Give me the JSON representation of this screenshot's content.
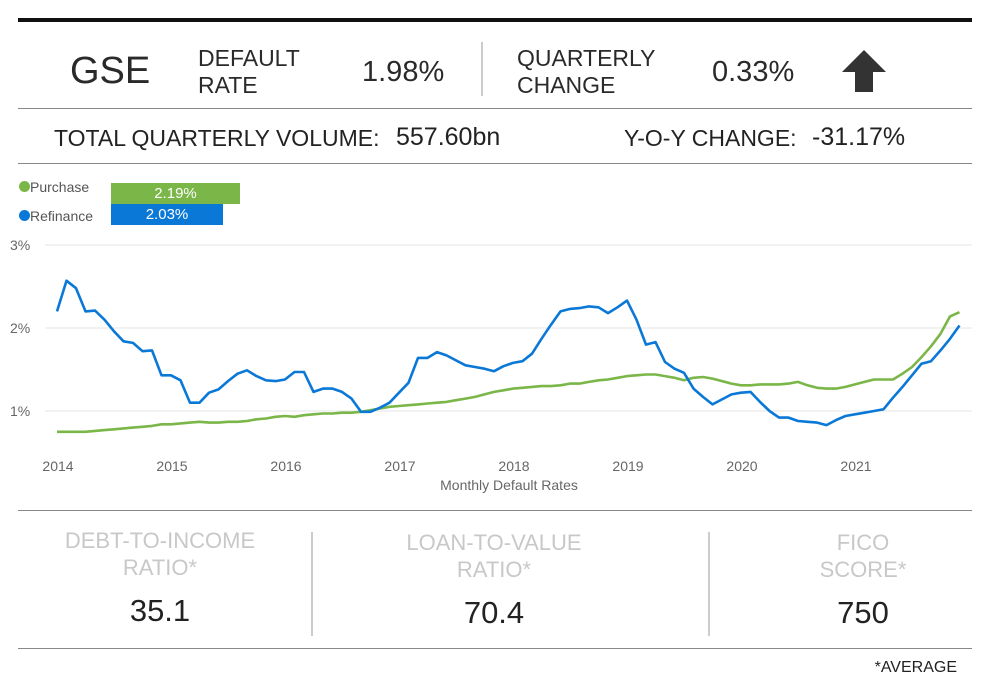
{
  "header": {
    "segment": "GSE",
    "default_rate_label": [
      "DEFAULT",
      "RATE"
    ],
    "default_rate_value": "1.98%",
    "quarterly_change_label": [
      "QUARTERLY",
      "CHANGE"
    ],
    "quarterly_change_value": "0.33%",
    "trend_icon": "arrow-up-icon"
  },
  "volume": {
    "label": "TOTAL QUARTERLY VOLUME:",
    "value": "557.60bn",
    "yoy_label": "Y-O-Y CHANGE:",
    "yoy_value": "-31.17%"
  },
  "legend": [
    {
      "name": "Purchase",
      "value": "2.19%",
      "color": "#7ab648"
    },
    {
      "name": "Refinance",
      "value": "2.03%",
      "color": "#0a78d7"
    }
  ],
  "chart_data": {
    "type": "line",
    "xlabel": "Monthly Default Rates",
    "ylabel": "",
    "x_ticks": [
      "2014",
      "2015",
      "2016",
      "2017",
      "2018",
      "2019",
      "2020",
      "2021"
    ],
    "y_ticks": [
      "3%",
      "2%",
      "1%"
    ],
    "ylim": [
      0.5,
      3
    ],
    "x_range": [
      "2014-01",
      "2021-12"
    ],
    "grid": "horizontal",
    "legend_position": "top-left",
    "series": [
      {
        "name": "Purchase",
        "color": "#7ab648",
        "values": [
          0.75,
          0.75,
          0.75,
          0.75,
          0.76,
          0.77,
          0.78,
          0.79,
          0.8,
          0.81,
          0.82,
          0.84,
          0.84,
          0.85,
          0.86,
          0.87,
          0.86,
          0.86,
          0.87,
          0.87,
          0.88,
          0.9,
          0.91,
          0.93,
          0.94,
          0.93,
          0.95,
          0.96,
          0.97,
          0.97,
          0.98,
          0.98,
          0.99,
          1.01,
          1.03,
          1.05,
          1.06,
          1.07,
          1.08,
          1.09,
          1.1,
          1.11,
          1.13,
          1.15,
          1.17,
          1.2,
          1.23,
          1.25,
          1.27,
          1.28,
          1.29,
          1.3,
          1.3,
          1.31,
          1.33,
          1.33,
          1.35,
          1.37,
          1.38,
          1.4,
          1.42,
          1.43,
          1.44,
          1.44,
          1.42,
          1.4,
          1.37,
          1.4,
          1.41,
          1.39,
          1.36,
          1.33,
          1.31,
          1.31,
          1.32,
          1.32,
          1.32,
          1.33,
          1.35,
          1.31,
          1.28,
          1.27,
          1.27,
          1.29,
          1.32,
          1.35,
          1.38,
          1.38,
          1.38,
          1.45,
          1.53,
          1.65,
          1.78,
          1.93,
          2.14,
          2.19
        ]
      },
      {
        "name": "Refinance",
        "color": "#0a78d7",
        "values": [
          2.2,
          2.57,
          2.48,
          2.2,
          2.21,
          2.1,
          1.96,
          1.84,
          1.82,
          1.72,
          1.73,
          1.43,
          1.43,
          1.37,
          1.1,
          1.1,
          1.22,
          1.26,
          1.36,
          1.45,
          1.49,
          1.42,
          1.37,
          1.36,
          1.38,
          1.47,
          1.47,
          1.23,
          1.27,
          1.27,
          1.23,
          1.15,
          0.99,
          0.99,
          1.04,
          1.1,
          1.22,
          1.34,
          1.64,
          1.64,
          1.71,
          1.67,
          1.61,
          1.55,
          1.53,
          1.51,
          1.48,
          1.54,
          1.58,
          1.6,
          1.69,
          1.87,
          2.04,
          2.2,
          2.23,
          2.24,
          2.26,
          2.25,
          2.18,
          2.25,
          2.33,
          2.1,
          1.8,
          1.83,
          1.59,
          1.51,
          1.46,
          1.27,
          1.17,
          1.08,
          1.14,
          1.2,
          1.22,
          1.23,
          1.11,
          1.0,
          0.92,
          0.92,
          0.88,
          0.87,
          0.86,
          0.83,
          0.89,
          0.94,
          0.96,
          0.98,
          1.0,
          1.02,
          1.16,
          1.29,
          1.43,
          1.57,
          1.6,
          1.73,
          1.87,
          2.03
        ]
      }
    ]
  },
  "stats": [
    {
      "label": [
        "DEBT-TO-INCOME",
        "RATIO*"
      ],
      "value": "35.1"
    },
    {
      "label": [
        "LOAN-TO-VALUE",
        "RATIO*"
      ],
      "value": "70.4"
    },
    {
      "label": [
        "FICO",
        "SCORE*"
      ],
      "value": "750"
    }
  ],
  "footnote": "*AVERAGE"
}
